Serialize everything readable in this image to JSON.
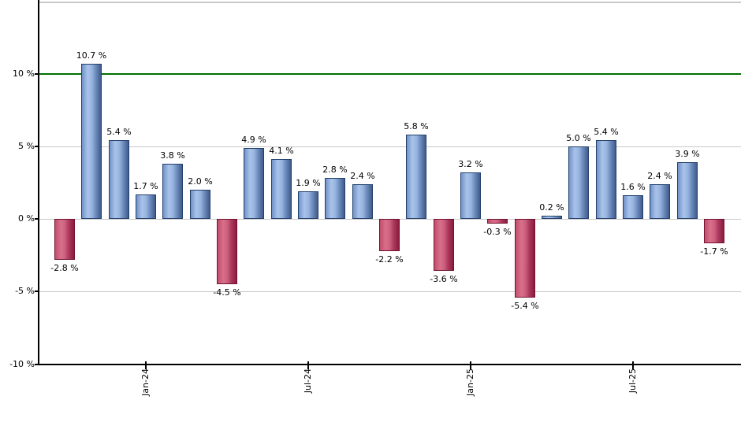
{
  "chart_data": {
    "type": "bar",
    "title": "",
    "xlabel": "",
    "ylabel": "",
    "values": [
      -2.8,
      10.7,
      5.4,
      1.7,
      3.8,
      2.0,
      -4.5,
      4.9,
      4.1,
      1.9,
      2.8,
      2.4,
      -2.2,
      5.8,
      -3.6,
      3.2,
      -0.3,
      -5.4,
      0.2,
      5.0,
      5.4,
      1.6,
      2.4,
      3.9,
      -1.7
    ],
    "bar_labels": [
      "-2.8 %",
      "10.7 %",
      "5.4 %",
      "1.7 %",
      "3.8 %",
      "2.0 %",
      "-4.5 %",
      "4.9 %",
      "4.1 %",
      "1.9 %",
      "2.8 %",
      "2.4 %",
      "-2.2 %",
      "5.8 %",
      "-3.6 %",
      "3.2 %",
      "-0.3 %",
      "-5.4 %",
      "0.2 %",
      "5.0 %",
      "5.4 %",
      "1.6 %",
      "2.4 %",
      "3.9 %",
      "-1.7 %"
    ],
    "x_tick_labels": [
      "Jan-24",
      "Jul-24",
      "Jan-25",
      "Jul-25"
    ],
    "x_tick_bar_indices": [
      3,
      9,
      15,
      21
    ],
    "y_tick_labels": [
      "10 %",
      "5 %",
      "0 %",
      "-5 %",
      "-10 %"
    ],
    "y_tick_values": [
      10,
      5,
      0,
      -5,
      -10
    ],
    "ylim": [
      -10,
      15
    ],
    "benchmark_line_value": 10,
    "grid": true,
    "legend": "none",
    "colors": {
      "positive_bar_light": "#a9c3ea",
      "positive_bar_dark": "#3f5b8a",
      "positive_bar_border": "#23406b",
      "negative_bar_light": "#d8708b",
      "negative_bar_dark": "#8c1c3d",
      "negative_bar_border": "#701230",
      "benchmark_line": "#007000",
      "gridline": "#c8c8c8",
      "axis": "#000000",
      "background": "#ffffff"
    }
  }
}
